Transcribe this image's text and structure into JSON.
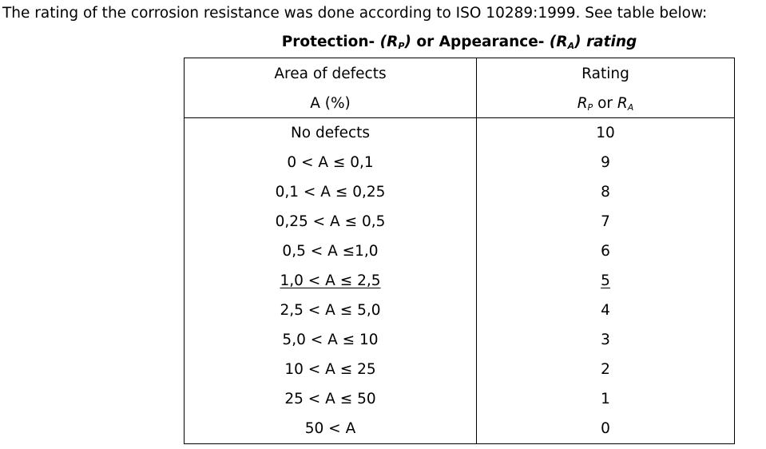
{
  "intro_text": "The rating of the corrosion resistance was done according to ISO 10289:1999. See table below:",
  "caption": {
    "protection_label": "Protection-",
    "protection_symbol_letter": "R",
    "protection_symbol_sub": "P",
    "appearance_label": "or Appearance-",
    "appearance_symbol_letter": "R",
    "appearance_symbol_sub": "A",
    "rating_word": "rating"
  },
  "table": {
    "header_left_line1": "Area of defects",
    "header_left_line2": "A (%)",
    "header_right_line1": "Rating",
    "header_right_rp_letter": "R",
    "header_right_rp_sub": "P",
    "header_right_or": "or",
    "header_right_ra_letter": "R",
    "header_right_ra_sub": "A",
    "rows": [
      {
        "area": "No defects",
        "rating": "10"
      },
      {
        "area": "0 < A ≤ 0,1",
        "rating": "9"
      },
      {
        "area": "0,1 < A ≤ 0,25",
        "rating": "8"
      },
      {
        "area": "0,25 < A ≤ 0,5",
        "rating": "7"
      },
      {
        "area": "0,5 < A ≤1,0",
        "rating": "6"
      },
      {
        "area": "1,0 < A ≤ 2,5",
        "rating": "5"
      },
      {
        "area": "2,5 < A ≤ 5,0",
        "rating": "4"
      },
      {
        "area": "5,0 < A ≤ 10",
        "rating": "3"
      },
      {
        "area": "10 < A ≤ 25",
        "rating": "2"
      },
      {
        "area": "25 < A ≤ 50",
        "rating": "1"
      },
      {
        "area": "50 < A",
        "rating": "0"
      }
    ]
  }
}
